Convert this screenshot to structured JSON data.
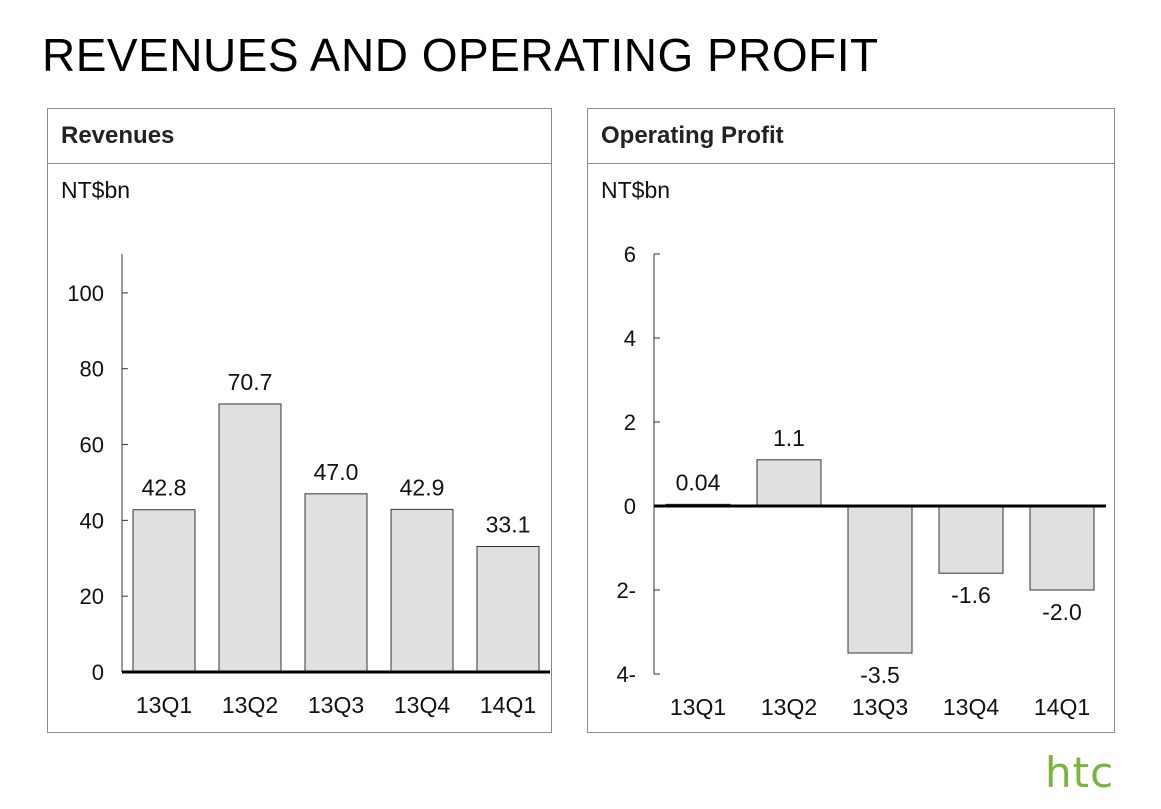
{
  "page": {
    "title": "REVENUES AND OPERATING PROFIT",
    "logo_text": "htc",
    "logo_color": "#7cb33b",
    "bar_fill": "#e0e0e0",
    "bar_stroke": "#333333"
  },
  "panels": {
    "revenues": {
      "title": "Revenues",
      "unit": "NT$bn"
    },
    "operating_profit": {
      "title": "Operating Profit",
      "unit": "NT$bn"
    }
  },
  "chart_data": [
    {
      "type": "bar",
      "title": "Revenues",
      "ylabel": "NT$bn",
      "categories": [
        "13Q1",
        "13Q2",
        "13Q3",
        "13Q4",
        "14Q1"
      ],
      "values": [
        42.8,
        70.7,
        47.0,
        42.9,
        33.1
      ],
      "data_labels": [
        "42.8",
        "70.7",
        "47.0",
        "42.9",
        "33.1"
      ],
      "yticks": [
        0,
        20,
        40,
        60,
        80,
        100
      ],
      "ytick_labels": [
        "0",
        "20",
        "40",
        "60",
        "80",
        "100"
      ],
      "ylim": [
        0,
        110
      ],
      "grid": false,
      "legend": "none"
    },
    {
      "type": "bar",
      "title": "Operating Profit",
      "ylabel": "NT$bn",
      "categories": [
        "13Q1",
        "13Q2",
        "13Q3",
        "13Q4",
        "14Q1"
      ],
      "values": [
        0.04,
        1.1,
        -3.5,
        -1.6,
        -2.0
      ],
      "data_labels": [
        "0.04",
        "1.1",
        "-3.5",
        "-1.6",
        "-2.0"
      ],
      "yticks": [
        6,
        4,
        2,
        0,
        -2,
        -4
      ],
      "ytick_labels": [
        "6",
        "4",
        "2",
        "0",
        "2-",
        "4-"
      ],
      "ylim": [
        -4,
        6
      ],
      "grid": false,
      "legend": "none"
    }
  ]
}
